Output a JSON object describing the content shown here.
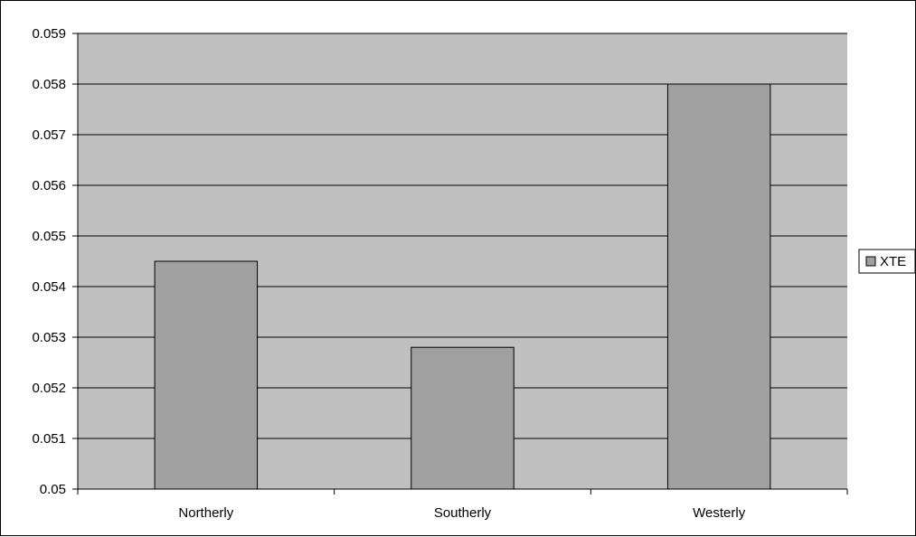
{
  "chart_data": {
    "type": "bar",
    "title": "",
    "xlabel": "",
    "ylabel": "",
    "categories": [
      "Northerly",
      "Southerly",
      "Westerly"
    ],
    "series": [
      {
        "name": "XTE",
        "values": [
          0.0545,
          0.0528,
          0.058
        ]
      }
    ],
    "ylim": [
      0.05,
      0.059
    ],
    "yticks": [
      "0.05",
      "0.051",
      "0.052",
      "0.053",
      "0.054",
      "0.055",
      "0.056",
      "0.057",
      "0.058",
      "0.059"
    ],
    "grid": true,
    "legend_position": "right",
    "colors": {
      "plot_area": "#c0c0c0",
      "bar_fill": "#a0a0a0",
      "bar_stroke": "#000000",
      "gridline": "#000000",
      "axis": "#000000"
    }
  }
}
